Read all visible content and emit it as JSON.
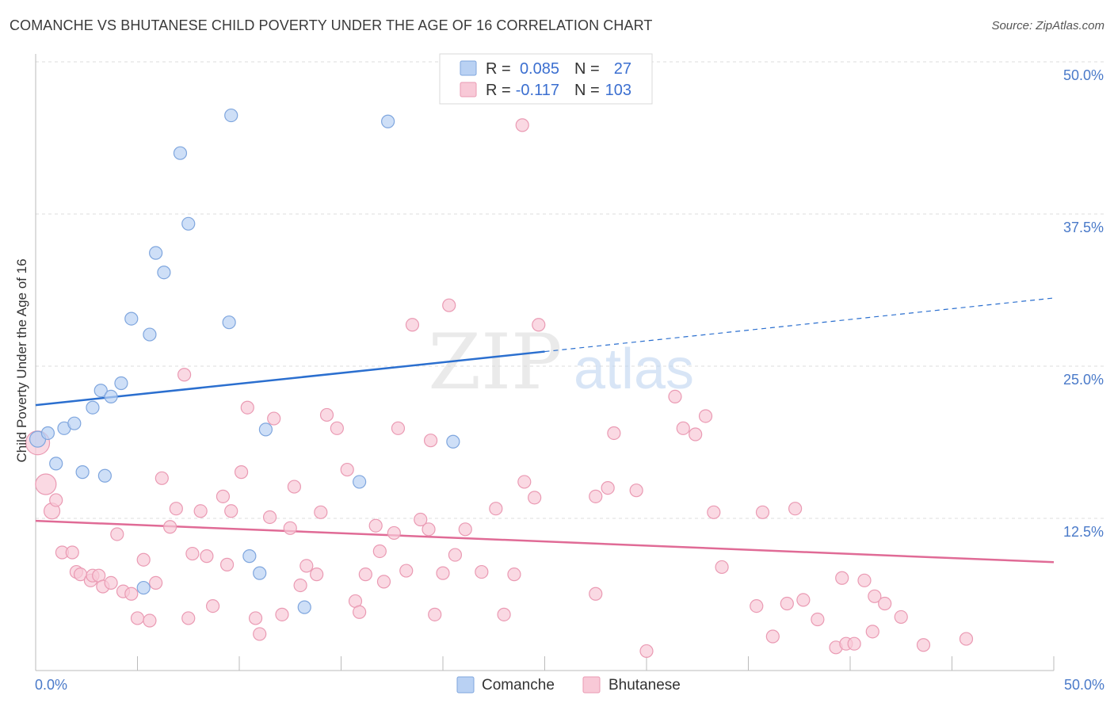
{
  "title": "COMANCHE VS BHUTANESE CHILD POVERTY UNDER THE AGE OF 16 CORRELATION CHART",
  "source": "Source: ZipAtlas.com",
  "watermark": {
    "zip": "ZIP",
    "atlas": "atlas"
  },
  "legend": {
    "r_label": "R =",
    "n_label": "N =",
    "rows": [
      {
        "r": "0.085",
        "n": "27"
      },
      {
        "r": "-0.117",
        "n": "103"
      }
    ]
  },
  "colors": {
    "comanche_fill": "#b9d1f3",
    "comanche_stroke": "#7fa6de",
    "comanche_line": "#2b6fcf",
    "bhutanese_fill": "#f8c9d7",
    "bhutanese_stroke": "#ea9ab3",
    "bhutanese_line": "#e06b96",
    "tick_text": "#4a7ac9",
    "grid": "#dddddd"
  },
  "chart_data": {
    "type": "scatter",
    "ylabel": "Child Poverty Under the Age of 16",
    "xlim": [
      0,
      50
    ],
    "ylim": [
      0,
      50
    ],
    "x_tick_labels": [
      "0.0%",
      "50.0%"
    ],
    "y_ticks": [
      12.5,
      25.0,
      37.5,
      50.0
    ],
    "y_tick_labels": [
      "12.5%",
      "25.0%",
      "37.5%",
      "50.0%"
    ],
    "grid": true,
    "legend_position": "bottom",
    "series": [
      {
        "name": "Comanche",
        "points": [
          [
            0.1,
            19.0
          ],
          [
            0.6,
            19.5
          ],
          [
            1.0,
            17.0
          ],
          [
            1.4,
            19.9
          ],
          [
            1.9,
            20.3
          ],
          [
            2.3,
            16.3
          ],
          [
            2.8,
            21.6
          ],
          [
            3.2,
            23.0
          ],
          [
            3.4,
            16.0
          ],
          [
            3.7,
            22.5
          ],
          [
            4.2,
            23.6
          ],
          [
            4.7,
            28.9
          ],
          [
            5.6,
            27.6
          ],
          [
            5.9,
            34.3
          ],
          [
            6.3,
            32.7
          ],
          [
            7.1,
            42.5
          ],
          [
            7.5,
            36.7
          ],
          [
            9.6,
            45.6
          ],
          [
            9.5,
            28.6
          ],
          [
            10.5,
            9.4
          ],
          [
            11.0,
            8.0
          ],
          [
            11.3,
            19.8
          ],
          [
            13.2,
            5.2
          ],
          [
            15.9,
            15.5
          ],
          [
            17.3,
            45.1
          ],
          [
            20.5,
            18.8
          ],
          [
            5.3,
            6.8
          ]
        ],
        "trend": {
          "x0": 0,
          "y0": 21.8,
          "x1": 25,
          "y1": 26.2,
          "dash_to_x": 50,
          "dash_to_y": 30.6
        }
      },
      {
        "name": "Bhutanese",
        "points": [
          [
            0.1,
            18.7
          ],
          [
            0.5,
            15.3
          ],
          [
            0.8,
            13.1
          ],
          [
            1.0,
            14.0
          ],
          [
            1.3,
            9.7
          ],
          [
            1.8,
            9.7
          ],
          [
            2.0,
            8.1
          ],
          [
            2.2,
            7.9
          ],
          [
            2.7,
            7.4
          ],
          [
            2.8,
            7.8
          ],
          [
            3.1,
            7.8
          ],
          [
            3.3,
            6.9
          ],
          [
            3.7,
            7.2
          ],
          [
            4.0,
            11.2
          ],
          [
            4.3,
            6.5
          ],
          [
            4.7,
            6.3
          ],
          [
            5.0,
            4.3
          ],
          [
            5.3,
            9.1
          ],
          [
            5.6,
            4.1
          ],
          [
            5.9,
            7.2
          ],
          [
            6.2,
            15.8
          ],
          [
            6.6,
            11.8
          ],
          [
            6.9,
            13.3
          ],
          [
            7.3,
            24.3
          ],
          [
            7.5,
            4.3
          ],
          [
            7.7,
            9.6
          ],
          [
            8.1,
            13.1
          ],
          [
            8.4,
            9.4
          ],
          [
            8.7,
            5.3
          ],
          [
            9.2,
            14.3
          ],
          [
            9.4,
            8.7
          ],
          [
            9.6,
            13.1
          ],
          [
            10.1,
            16.3
          ],
          [
            10.4,
            21.6
          ],
          [
            10.8,
            4.3
          ],
          [
            11.0,
            3.0
          ],
          [
            11.5,
            12.6
          ],
          [
            11.7,
            20.7
          ],
          [
            12.1,
            4.6
          ],
          [
            12.5,
            11.7
          ],
          [
            12.7,
            15.1
          ],
          [
            13.0,
            7.0
          ],
          [
            13.3,
            8.6
          ],
          [
            13.8,
            7.9
          ],
          [
            14.0,
            13.0
          ],
          [
            14.3,
            21.0
          ],
          [
            14.8,
            19.9
          ],
          [
            15.3,
            16.5
          ],
          [
            15.7,
            5.7
          ],
          [
            15.9,
            4.8
          ],
          [
            16.2,
            7.9
          ],
          [
            16.7,
            11.9
          ],
          [
            16.9,
            9.8
          ],
          [
            17.1,
            7.3
          ],
          [
            17.6,
            11.3
          ],
          [
            17.8,
            19.9
          ],
          [
            18.2,
            8.2
          ],
          [
            18.5,
            28.4
          ],
          [
            18.9,
            12.4
          ],
          [
            19.3,
            11.6
          ],
          [
            19.4,
            18.9
          ],
          [
            19.6,
            4.6
          ],
          [
            20.0,
            8.0
          ],
          [
            20.3,
            30.0
          ],
          [
            20.6,
            9.5
          ],
          [
            21.1,
            11.6
          ],
          [
            21.9,
            8.1
          ],
          [
            22.6,
            13.3
          ],
          [
            23.0,
            4.6
          ],
          [
            23.5,
            7.9
          ],
          [
            23.9,
            44.8
          ],
          [
            24.0,
            15.5
          ],
          [
            24.5,
            14.2
          ],
          [
            24.7,
            28.4
          ],
          [
            27.5,
            6.3
          ],
          [
            27.5,
            14.3
          ],
          [
            28.1,
            15.0
          ],
          [
            28.4,
            19.5
          ],
          [
            29.5,
            14.8
          ],
          [
            30.0,
            1.6
          ],
          [
            31.4,
            22.5
          ],
          [
            31.8,
            19.9
          ],
          [
            32.4,
            19.4
          ],
          [
            32.9,
            20.9
          ],
          [
            33.3,
            13.0
          ],
          [
            33.7,
            8.5
          ],
          [
            35.4,
            5.3
          ],
          [
            35.7,
            13.0
          ],
          [
            36.2,
            2.8
          ],
          [
            36.9,
            5.5
          ],
          [
            37.3,
            13.3
          ],
          [
            37.7,
            5.8
          ],
          [
            38.4,
            4.2
          ],
          [
            39.3,
            1.9
          ],
          [
            39.6,
            7.6
          ],
          [
            39.8,
            2.2
          ],
          [
            40.2,
            2.2
          ],
          [
            40.7,
            7.4
          ],
          [
            41.1,
            3.2
          ],
          [
            41.2,
            6.1
          ],
          [
            41.7,
            5.5
          ],
          [
            42.5,
            4.4
          ],
          [
            43.6,
            2.1
          ],
          [
            45.7,
            2.6
          ]
        ],
        "trend": {
          "x0": 0,
          "y0": 12.3,
          "x1": 50,
          "y1": 8.9
        }
      }
    ]
  }
}
